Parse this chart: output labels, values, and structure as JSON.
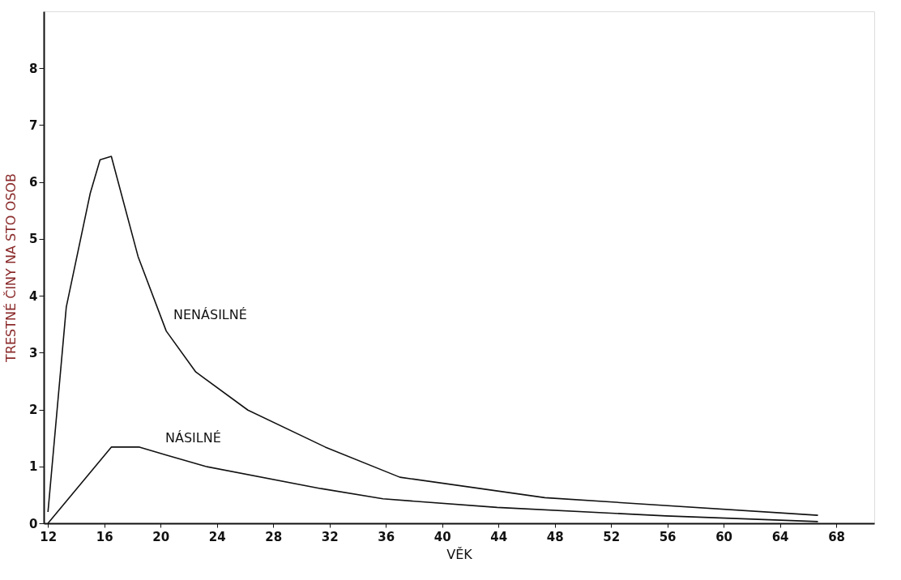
{
  "chart_data": {
    "type": "line",
    "xlabel": "VĚK",
    "ylabel": "TRESTNÉ ČINY NA STO OSOB",
    "xlim": [
      11.7,
      70.7
    ],
    "ylim": [
      0,
      9
    ],
    "xticks": [
      12,
      16,
      20,
      24,
      28,
      32,
      36,
      40,
      44,
      48,
      52,
      56,
      60,
      64,
      68
    ],
    "yticks": [
      0,
      1,
      2,
      3,
      4,
      5,
      6,
      7,
      8
    ],
    "grid": false,
    "legend": false,
    "marker": "none",
    "line_style": "solid",
    "series": [
      {
        "name": "NENÁSILNÉ",
        "color": "#111111",
        "x": [
          12,
          13.3,
          15,
          15.7,
          16.5,
          18.4,
          20.4,
          22.5,
          26.2,
          31.7,
          37,
          47.3,
          66.7
        ],
        "values": [
          0.2,
          3.8,
          5.8,
          6.39,
          6.45,
          4.69,
          3.38,
          2.66,
          1.99,
          1.34,
          0.81,
          0.45,
          0.14
        ]
      },
      {
        "name": "NÁSILNÉ",
        "color": "#111111",
        "x": [
          12,
          16.5,
          18.5,
          20.4,
          23.2,
          31.4,
          35.8,
          43.9,
          55.9,
          66.7
        ],
        "values": [
          0,
          1.34,
          1.34,
          1.2,
          1.0,
          0.61,
          0.43,
          0.28,
          0.13,
          0.03
        ]
      }
    ]
  }
}
